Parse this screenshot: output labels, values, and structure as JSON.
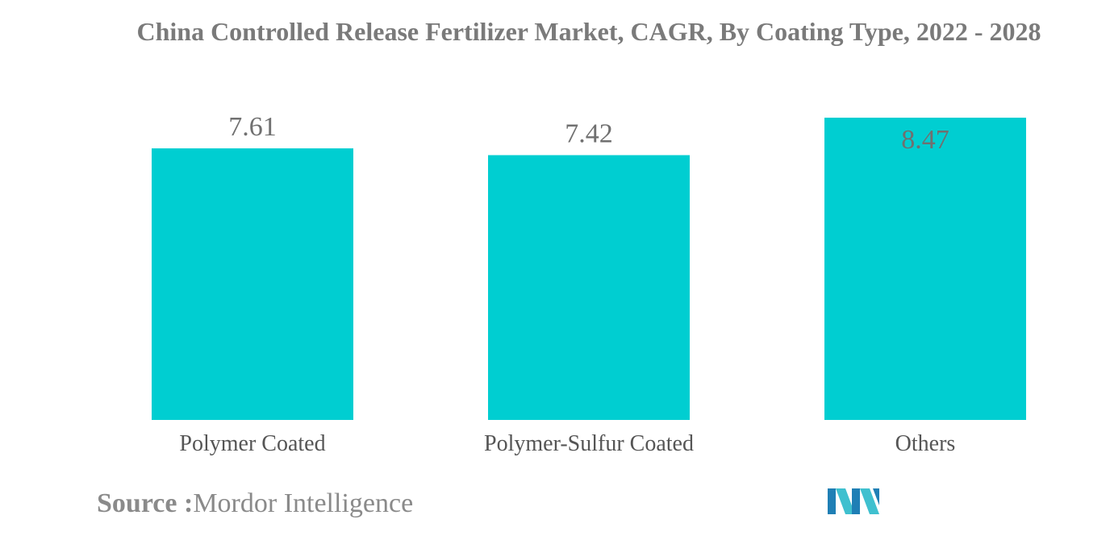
{
  "chart_data": {
    "type": "bar",
    "title": "China Controlled Release Fertilizer Market, CAGR, By Coating Type, 2022 - 2028",
    "categories": [
      "Polymer Coated",
      "Polymer-Sulfur Coated",
      "Others"
    ],
    "values": [
      7.61,
      7.42,
      8.47
    ],
    "data_labels": [
      "7.61",
      "7.42",
      "8.47"
    ],
    "xlabel": "",
    "ylabel": "",
    "ylim": [
      0,
      8.47
    ],
    "grid": false,
    "legend": "none",
    "bar_color": "#00CED1"
  },
  "source": {
    "label": "Source :",
    "text": "Mordor Intelligence"
  },
  "logo": {
    "icon": "mordor-intelligence-logo",
    "colors": [
      "#1f7fb5",
      "#3fc0cf"
    ]
  },
  "colors": {
    "title": "#7a7a7a",
    "label": "#555555",
    "value_label": "#707070",
    "bar": "#00CED1"
  }
}
